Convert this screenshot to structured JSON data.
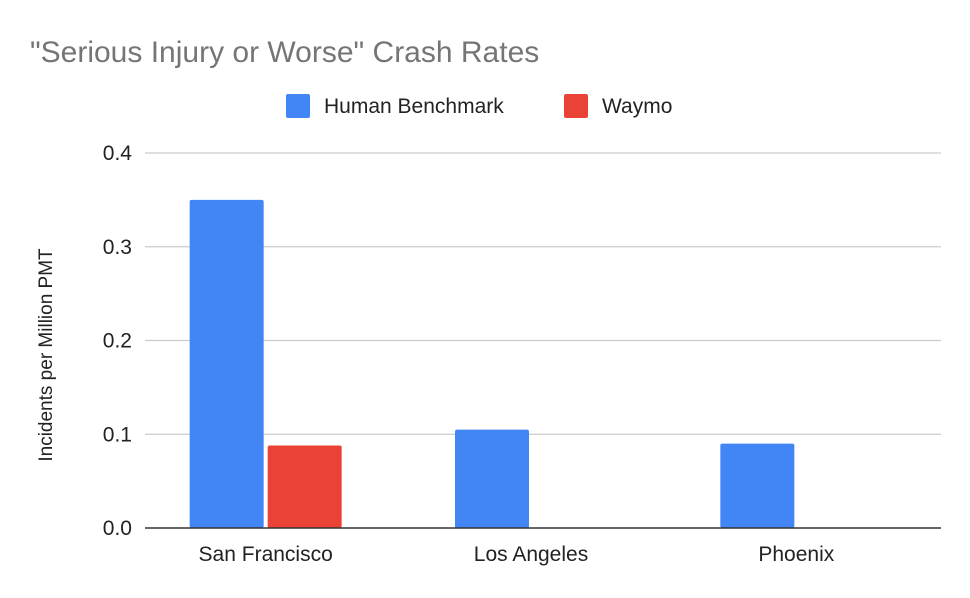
{
  "chart_data": {
    "type": "bar",
    "title": "\"Serious Injury or Worse\" Crash Rates",
    "xlabel": "",
    "ylabel": "Incidents per Million PMT",
    "categories": [
      "San Francisco",
      "Los Angeles",
      "Phoenix"
    ],
    "series": [
      {
        "name": "Human Benchmark",
        "color": "#4285F4",
        "values": [
          0.35,
          0.105,
          0.09
        ]
      },
      {
        "name": "Waymo",
        "color": "#EA4335",
        "values": [
          0.088,
          0,
          0
        ]
      }
    ],
    "ylim": [
      0,
      0.4
    ],
    "yticks": [
      "0.0",
      "0.1",
      "0.2",
      "0.3",
      "0.4"
    ],
    "grid": true,
    "legend_position": "top"
  }
}
